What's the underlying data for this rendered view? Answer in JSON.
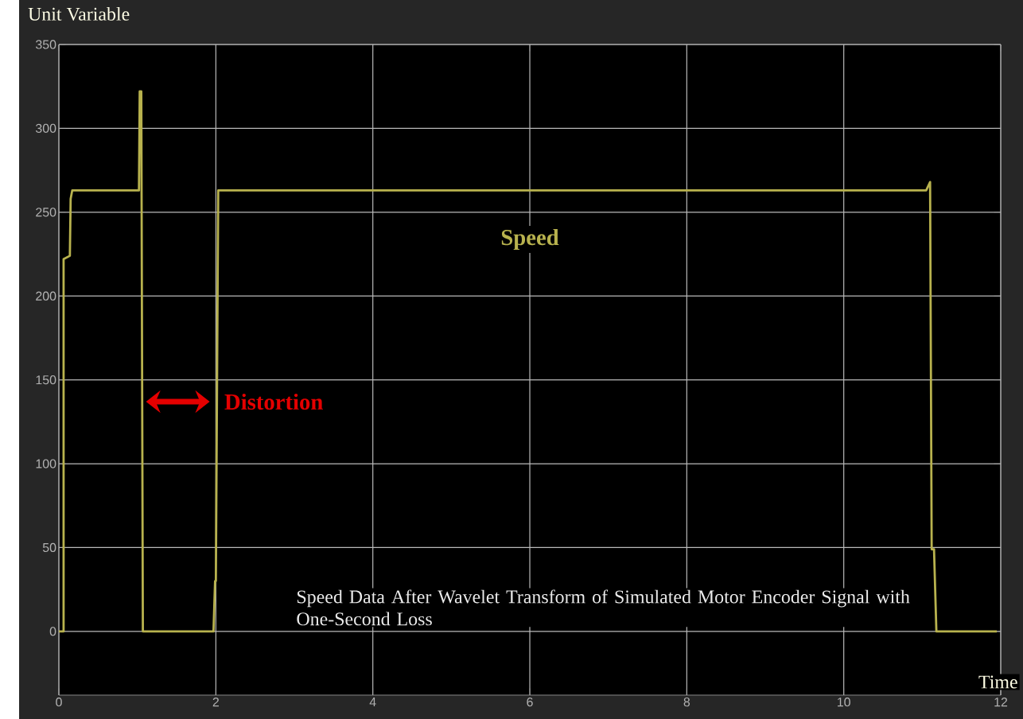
{
  "chart_data": {
    "type": "line",
    "xlabel": "Time",
    "ylabel": "Unit Variable",
    "x": [
      0,
      0.06,
      0.06,
      0.14,
      0.15,
      0.17,
      1.02,
      1.03,
      1.05,
      1.07,
      1.97,
      1.99,
      2.0,
      2.03,
      11.05,
      11.1,
      11.12,
      11.15,
      11.18,
      11.95
    ],
    "series": [
      {
        "name": "Speed",
        "color": "#b8b24e",
        "values": [
          0,
          0,
          222,
          224,
          258,
          263,
          263,
          322,
          322,
          0,
          0,
          30,
          30,
          263,
          263,
          268,
          49,
          49,
          0,
          0
        ]
      }
    ],
    "annotations": [
      {
        "text": "Distortion",
        "x": 1.07,
        "y": 137
      },
      "Speed Data After Wavelet Transform of Simulated Motor Encoder Signal with One-Second Loss"
    ],
    "xlim": [
      0,
      12
    ],
    "ylim": [
      -38,
      350
    ],
    "xticks": [
      0,
      2,
      4,
      6,
      8,
      10,
      12
    ],
    "yticks": [
      0,
      50,
      100,
      150,
      200,
      250,
      300,
      350
    ],
    "grid": true,
    "legend": false
  }
}
